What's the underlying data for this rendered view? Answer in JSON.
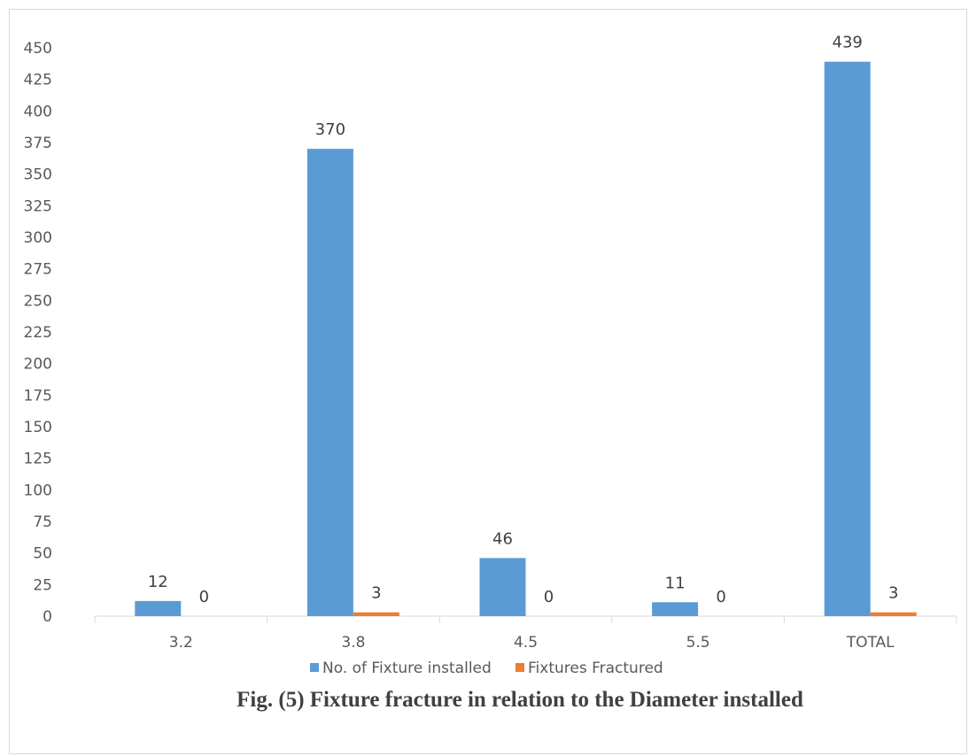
{
  "chart_data": {
    "type": "bar",
    "categories": [
      "3.2",
      "3.8",
      "4.5",
      "5.5",
      "TOTAL"
    ],
    "series": [
      {
        "name": "No. of Fixture installed",
        "values": [
          12,
          370,
          46,
          11,
          439
        ],
        "color": "#5b9bd5"
      },
      {
        "name": "Fixtures Fractured",
        "values": [
          0,
          3,
          0,
          0,
          3
        ],
        "color": "#ed7d31"
      }
    ],
    "ylim": [
      0,
      450
    ],
    "yticks": [
      "0",
      "25",
      "50",
      "75",
      "100",
      "125",
      "150",
      "175",
      "200",
      "225",
      "250",
      "275",
      "300",
      "325",
      "350",
      "375",
      "400",
      "425",
      "450"
    ],
    "grid": false,
    "legend_position": "bottom",
    "data_labels": true,
    "caption": "Fig. (5) Fixture fracture in relation to the Diameter installed"
  }
}
